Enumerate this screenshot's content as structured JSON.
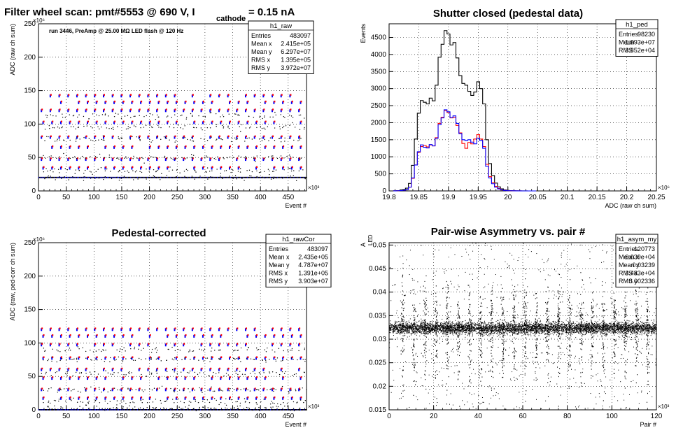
{
  "chart_data": [
    {
      "id": "raw",
      "type": "scatter",
      "title": "Filter wheel scan: pmt#5553 @   690 V, I",
      "title_sub": "cathode",
      "title_tail": " = 0.15 nA",
      "annotation": "run 3446, PreAmp @ 25.00 MΩ LED flash @  120 Hz",
      "xlabel": "Event #",
      "ylabel": "ADC (raw ch sum)",
      "x_exponent": "×10³",
      "y_exponent": "×10⁶",
      "xlim": [
        0,
        483
      ],
      "ylim": [
        0,
        250
      ],
      "xticks": [
        0,
        50,
        100,
        150,
        200,
        250,
        300,
        350,
        400,
        450
      ],
      "yticks": [
        0,
        50,
        100,
        150,
        200,
        250
      ],
      "grid": true,
      "levels_blue_red": [
        140,
        130,
        118,
        100,
        78,
        63,
        45,
        32
      ],
      "levels_black": [
        112,
        95,
        78,
        50,
        30,
        20
      ],
      "baseline": 20,
      "stats": {
        "name": "h1_raw",
        "rows": [
          {
            "label": "Entries",
            "value": "483097"
          },
          {
            "label": "Mean x",
            "value": "2.415e+05"
          },
          {
            "label": "Mean y",
            "value": "6.297e+07"
          },
          {
            "label": "RMS x",
            "value": "1.395e+05"
          },
          {
            "label": "RMS y",
            "value": "3.972e+07"
          }
        ]
      },
      "colors": {
        "blue": "#0000ff",
        "red": "#ff0000",
        "black": "#000000"
      }
    },
    {
      "id": "ped",
      "type": "histogram",
      "title": "Shutter closed (pedestal data)",
      "xlabel": "ADC (raw ch sum)",
      "ylabel": "Events",
      "x_exponent": "×10⁶",
      "xlim": [
        19.8,
        20.25
      ],
      "ylim": [
        0,
        4900
      ],
      "xticks": [
        19.8,
        19.85,
        19.9,
        19.95,
        20.0,
        20.05,
        20.1,
        20.15,
        20.2,
        20.25
      ],
      "xtick_labels": [
        "19.8",
        "19.85",
        "19.9",
        "19.95",
        "20",
        "20.05",
        "20.1",
        "20.15",
        "20.2",
        "20.25"
      ],
      "yticks": [
        0,
        500,
        1000,
        1500,
        2000,
        2500,
        3000,
        3500,
        4000,
        4500
      ],
      "grid": true,
      "bin_width": 0.005,
      "x": [
        19.81,
        19.815,
        19.82,
        19.825,
        19.83,
        19.835,
        19.84,
        19.845,
        19.85,
        19.855,
        19.86,
        19.865,
        19.87,
        19.875,
        19.88,
        19.885,
        19.89,
        19.895,
        19.9,
        19.905,
        19.91,
        19.915,
        19.92,
        19.925,
        19.93,
        19.935,
        19.94,
        19.945,
        19.95,
        19.955,
        19.96,
        19.965,
        19.97,
        19.975,
        19.98,
        19.985,
        19.99,
        19.995,
        20.0,
        20.005,
        20.01,
        20.015,
        20.02,
        20.025,
        20.03,
        20.035,
        20.04,
        20.045
      ],
      "series": [
        {
          "name": "all",
          "color": "#000000",
          "values": [
            5,
            10,
            20,
            40,
            80,
            220,
            750,
            1520,
            2280,
            2650,
            2600,
            2550,
            2720,
            2640,
            3100,
            3920,
            4300,
            4700,
            4600,
            4280,
            4350,
            3900,
            3380,
            3150,
            3100,
            2920,
            2800,
            2900,
            3200,
            3000,
            2550,
            1500,
            800,
            450,
            230,
            120,
            60,
            30,
            15,
            10,
            5,
            3,
            2,
            1,
            1,
            0,
            0,
            0
          ]
        },
        {
          "name": "red",
          "color": "#ff0000",
          "values": [
            2,
            5,
            10,
            20,
            40,
            110,
            370,
            760,
            1130,
            1300,
            1330,
            1290,
            1350,
            1320,
            1560,
            1980,
            2160,
            2350,
            2300,
            2140,
            2160,
            1920,
            1700,
            1390,
            1250,
            1420,
            1380,
            1520,
            1650,
            1520,
            1300,
            780,
            420,
            240,
            130,
            70,
            30,
            15,
            8,
            5,
            3,
            2,
            1,
            0,
            0,
            0,
            0,
            0
          ]
        },
        {
          "name": "blue",
          "color": "#0000ff",
          "values": [
            2,
            5,
            10,
            20,
            40,
            110,
            380,
            760,
            1150,
            1350,
            1280,
            1260,
            1360,
            1320,
            1540,
            1940,
            2140,
            2380,
            2320,
            2150,
            2200,
            1980,
            1680,
            1500,
            1480,
            1500,
            1430,
            1380,
            1550,
            1480,
            1250,
            720,
            380,
            210,
            110,
            60,
            28,
            14,
            7,
            5,
            3,
            2,
            1,
            0,
            0,
            0,
            0,
            0
          ]
        }
      ],
      "stats": {
        "name": "h1_ped",
        "rows": [
          {
            "label": "Entries",
            "value": "98230"
          },
          {
            "label": "Mean",
            "value": "1.993e+07"
          },
          {
            "label": "RMS",
            "value": "3.852e+04"
          }
        ]
      }
    },
    {
      "id": "rawcor",
      "type": "scatter",
      "title": "Pedestal-corrected",
      "xlabel": "Event #",
      "ylabel": "ADC (raw, ped-corr ch sum)",
      "x_exponent": "×10³",
      "y_exponent": "×10⁶",
      "xlim": [
        0,
        483
      ],
      "ylim": [
        0,
        250
      ],
      "xticks": [
        0,
        50,
        100,
        150,
        200,
        250,
        300,
        350,
        400,
        450
      ],
      "yticks": [
        0,
        50,
        100,
        150,
        200,
        250
      ],
      "grid": true,
      "levels_blue_red": [
        118,
        108,
        95,
        75,
        58,
        45,
        28,
        15
      ],
      "levels_black": [
        90,
        75,
        55,
        30,
        12,
        3
      ],
      "baseline": 0,
      "stats": {
        "name": "h1_rawCor",
        "rows": [
          {
            "label": "Entries",
            "value": "483097"
          },
          {
            "label": "Mean x",
            "value": "2.435e+05"
          },
          {
            "label": "Mean y",
            "value": "4.787e+07"
          },
          {
            "label": "RMS x",
            "value": "1.391e+05"
          },
          {
            "label": "RMS y",
            "value": "3.903e+07"
          }
        ]
      },
      "colors": {
        "blue": "#0000ff",
        "red": "#ff0000",
        "black": "#000000"
      }
    },
    {
      "id": "asym",
      "type": "scatter",
      "title": "Pair-wise Asymmetry vs. pair #",
      "xlabel": "Pair #",
      "ylabel": "A",
      "ylabel_sub": "LED",
      "x_exponent": "×10³",
      "xlim": [
        0,
        120
      ],
      "ylim": [
        0.015,
        0.0505
      ],
      "xticks": [
        0,
        20,
        40,
        60,
        80,
        100,
        120
      ],
      "yticks": [
        0.015,
        0.02,
        0.025,
        0.03,
        0.035,
        0.04,
        0.045,
        0.05
      ],
      "ytick_labels": [
        "0.015",
        "0.02",
        "0.025",
        "0.03",
        "0.035",
        "0.04",
        "0.045",
        "0.05"
      ],
      "grid": true,
      "band_center": 0.0324,
      "band_rms": 0.0006,
      "spike_positions": [
        6,
        11,
        16,
        21,
        26,
        31,
        36,
        41,
        46,
        51,
        56,
        61,
        66,
        71,
        76,
        81,
        86,
        91,
        96,
        101,
        106,
        111,
        116
      ],
      "stats": {
        "name": "h1_asym_my",
        "rows": [
          {
            "label": "Entries",
            "value": "120773"
          },
          {
            "label": "Mean x",
            "value": "6.039e+04"
          },
          {
            "label": "Mean y",
            "value": "0.03239"
          },
          {
            "label": "RMS x",
            "value": "3.483e+04"
          },
          {
            "label": "RMS y",
            "value": "0.002336"
          }
        ]
      }
    }
  ]
}
